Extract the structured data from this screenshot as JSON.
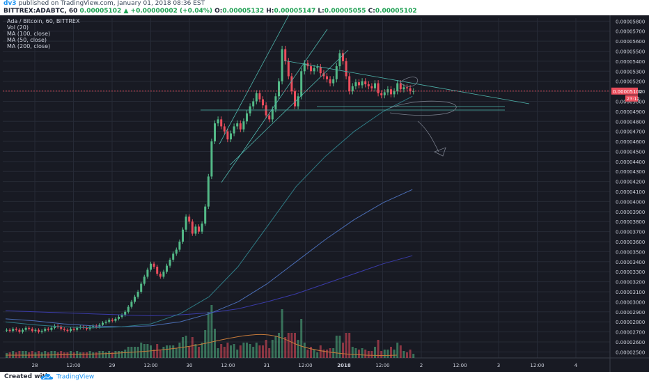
{
  "header": {
    "author": "dv3",
    "published_text": "published on TradingView.com, January 01, 2018 08:36 EST",
    "symbol": "BITTREX:ADABTC, 60",
    "last": "0.00005102",
    "change": "+0.00000002 (+0.04%)",
    "o_label": "O:",
    "o_value": "0.00005132",
    "h_label": "H:",
    "h_value": "0.00005147",
    "l_label": "L:",
    "l_value": "0.00005055",
    "c_label": "C:",
    "c_value": "0.00005102"
  },
  "legend": {
    "title": "Ada / Bitcoin, 60, BITTREX",
    "items": [
      "Vol (20)",
      "MA (100, close)",
      "MA (50, close)",
      "MA (200, close)"
    ]
  },
  "price_badge": {
    "value": "0.00005102",
    "countdown": "23:12"
  },
  "footer": {
    "created_with": "Created with",
    "brand": "TradingView"
  },
  "colors": {
    "background": "#181a23",
    "grid": "#262a36",
    "up": "#53b987",
    "down": "#eb4d5c",
    "axis_text": "#cfd3de",
    "last_price": "#eb4d5c",
    "ma_100": "#4a6db5",
    "ma_50": "#2f7a84",
    "ma_200": "#3a3ba8",
    "vol_ma": "#c57a3a",
    "drawing": "#4fb6ad"
  },
  "chart_data": {
    "type": "candlestick",
    "title": "Ada / Bitcoin, 60, BITTREX",
    "y_ticks": [
      "0.00002500",
      "0.00002600",
      "0.00002700",
      "0.00002800",
      "0.00002900",
      "0.00003000",
      "0.00003100",
      "0.00003200",
      "0.00003300",
      "0.00003400",
      "0.00003500",
      "0.00003600",
      "0.00003700",
      "0.00003800",
      "0.00003900",
      "0.00004000",
      "0.00004100",
      "0.00004200",
      "0.00004300",
      "0.00004400",
      "0.00004500",
      "0.00004600",
      "0.00004700",
      "0.00004800",
      "0.00004900",
      "0.00005000",
      "0.00005100",
      "0.00005200",
      "0.00005300",
      "0.00005400",
      "0.00005500",
      "0.00005600",
      "0.00005700",
      "0.00005800"
    ],
    "x_ticks": [
      "28",
      "12:00",
      "29",
      "12:00",
      "30",
      "12:00",
      "31",
      "12:00",
      "2018",
      "12:00",
      "2",
      "12:00",
      "3",
      "12:00",
      "4"
    ],
    "ylim": [
      2.44e-05,
      5.83e-05
    ],
    "close_series": [
      2.72e-05,
      2.71e-05,
      2.73e-05,
      2.72e-05,
      2.7e-05,
      2.72e-05,
      2.74e-05,
      2.73e-05,
      2.71e-05,
      2.72e-05,
      2.7e-05,
      2.71e-05,
      2.73e-05,
      2.72e-05,
      2.74e-05,
      2.76e-05,
      2.75e-05,
      2.73e-05,
      2.72e-05,
      2.71e-05,
      2.73e-05,
      2.72e-05,
      2.74e-05,
      2.75e-05,
      2.74e-05,
      2.73e-05,
      2.75e-05,
      2.76e-05,
      2.75e-05,
      2.77e-05,
      2.79e-05,
      2.8e-05,
      2.82e-05,
      2.81e-05,
      2.83e-05,
      2.85e-05,
      2.87e-05,
      2.9e-05,
      2.95e-05,
      3e-05,
      3.05e-05,
      3.1e-05,
      3.18e-05,
      3.25e-05,
      3.32e-05,
      3.38e-05,
      3.35e-05,
      3.28e-05,
      3.25e-05,
      3.3e-05,
      3.36e-05,
      3.42e-05,
      3.48e-05,
      3.52e-05,
      3.6e-05,
      3.72e-05,
      3.85e-05,
      3.8e-05,
      3.68e-05,
      3.75e-05,
      3.7e-05,
      3.78e-05,
      3.95e-05,
      4.25e-05,
      4.6e-05,
      4.78e-05,
      4.82e-05,
      4.75e-05,
      4.7e-05,
      4.62e-05,
      4.68e-05,
      4.75e-05,
      4.78e-05,
      4.72e-05,
      4.8e-05,
      4.88e-05,
      4.95e-05,
      5e-05,
      5.08e-05,
      5.02e-05,
      4.96e-05,
      4.86e-05,
      4.82e-05,
      4.92e-05,
      5.05e-05,
      5.2e-05,
      5.52e-05,
      5.4e-05,
      5.25e-05,
      5.1e-05,
      4.95e-05,
      5.05e-05,
      5.3e-05,
      5.38e-05,
      5.35e-05,
      5.3e-05,
      5.33e-05,
      5.34e-05,
      5.28e-05,
      5.25e-05,
      5.22e-05,
      5.18e-05,
      5.22e-05,
      5.35e-05,
      5.48e-05,
      5.4e-05,
      5.25e-05,
      5.1e-05,
      5.15e-05,
      5.19e-05,
      5.16e-05,
      5.2e-05,
      5.17e-05,
      5.15e-05,
      5.13e-05,
      5.18e-05,
      5.08e-05,
      5.06e-05,
      5.09e-05,
      5.12e-05,
      5.07e-05,
      5.1e-05,
      5.18e-05,
      5.12e-05,
      5.14e-05,
      5.13e-05,
      5.1e-05,
      5.1e-05
    ],
    "ma_100": [
      2.83e-05,
      2.81e-05,
      2.78e-05,
      2.76e-05,
      2.75e-05,
      2.76e-05,
      2.8e-05,
      2.88e-05,
      3e-05,
      3.18e-05,
      3.4e-05,
      3.62e-05,
      3.82e-05,
      3.99e-05,
      4.12e-05
    ],
    "ma_50": [
      2.8e-05,
      2.77e-05,
      2.75e-05,
      2.74e-05,
      2.75e-05,
      2.78e-05,
      2.88e-05,
      3.05e-05,
      3.35e-05,
      3.75e-05,
      4.15e-05,
      4.45e-05,
      4.7e-05,
      4.9e-05,
      5.05e-05
    ],
    "ma_200": [
      2.91e-05,
      2.9e-05,
      2.89e-05,
      2.88e-05,
      2.87e-05,
      2.86e-05,
      2.87e-05,
      2.89e-05,
      2.93e-05,
      3e-05,
      3.08e-05,
      3.18e-05,
      3.28e-05,
      3.38e-05,
      3.46e-05
    ],
    "last_price": 5.102e-05
  }
}
